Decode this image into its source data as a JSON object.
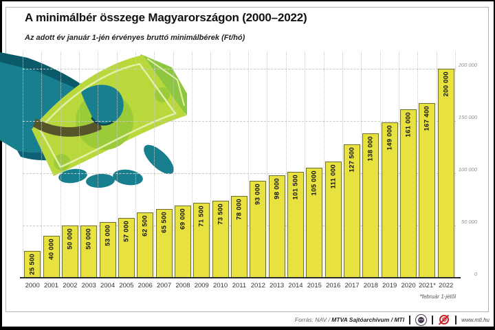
{
  "header": {
    "title": "A minimálbér összege Magyarországon (2000–2022)",
    "subtitle": "Az adott év január 1-jén érvényes bruttó minimálbérek (Ft/hó)"
  },
  "chart_data": {
    "type": "bar",
    "title": "A minimálbér összege Magyarországon (2000–2022)",
    "subtitle": "Az adott év január 1-jén érvényes bruttó minimálbérek (Ft/hó)",
    "unit": "Ft/hó",
    "categories": [
      "2000",
      "2001",
      "2002",
      "2003",
      "2004",
      "2005",
      "2006",
      "2007",
      "2008",
      "2009",
      "2010",
      "2011",
      "2012",
      "2013",
      "2014",
      "2015",
      "2016",
      "2017",
      "2018",
      "2019",
      "2020",
      "2021*",
      "2022"
    ],
    "values": [
      25500,
      40000,
      50000,
      50000,
      53000,
      57000,
      62500,
      65500,
      69000,
      71500,
      73500,
      78000,
      93000,
      98000,
      101500,
      105000,
      111000,
      127500,
      138000,
      149000,
      161000,
      167400,
      200000
    ],
    "value_labels": [
      "25 500",
      "40 000",
      "50 000",
      "50 000",
      "53 000",
      "57 000",
      "62 500",
      "65 500",
      "69 000",
      "71 500",
      "73 500",
      "78 000",
      "93 000",
      "98 000",
      "101 500",
      "105 000",
      "111 000",
      "127 500",
      "138 000",
      "149 000",
      "161 000",
      "167 400",
      "200 000"
    ],
    "ylim": [
      0,
      200000
    ],
    "y_ticks": [
      {
        "label": "200 000",
        "value": 200000
      },
      {
        "label": "150 000",
        "value": 150000
      },
      {
        "label": "100 000",
        "value": 100000
      },
      {
        "label": "50 000",
        "value": 50000
      },
      {
        "label": "0",
        "value": 0
      }
    ],
    "grid": true,
    "legend": "none",
    "footnote": "*február 1-jétől"
  },
  "footer": {
    "source_prefix": "Forrás: NAV / ",
    "source_bold": "MTVA Sajtóarchívum / MTI",
    "mtva_logo_text": "MTVA",
    "website": "www.mti.hu"
  },
  "colors": {
    "bar_fill": "#e8e240",
    "bar_border": "#6e6c2a",
    "hand_teal": "#177f8d",
    "hand_teal_dark": "#0a5a69",
    "hand_teal_shade": "#0c6274",
    "note_green": "#b9d83b",
    "note_circle": "#9ccb3a",
    "note_back": "#8dc63f",
    "note_line": "#e2f0a8",
    "thumb_shadow": "#55542a",
    "mti_red": "#c4242b"
  }
}
